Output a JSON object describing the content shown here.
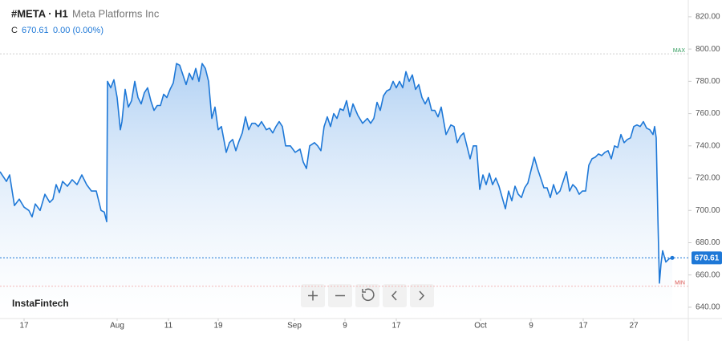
{
  "chart_data": {
    "type": "area",
    "title": "#META · H1",
    "subtitle": "Meta Platforms Inc",
    "last": {
      "label": "C",
      "value": 670.61,
      "change": "0.00 (0.00%)"
    },
    "max_line": {
      "label": "MAX",
      "value": 797
    },
    "min_line": {
      "label": "MIN",
      "value": 653
    },
    "brand": "InstaFintech",
    "color": "#1e78d7",
    "xlim": [
      0,
      858
    ],
    "ylim": [
      633,
      830.4
    ],
    "yticks": [
      {
        "value": 640,
        "label": "640.00"
      },
      {
        "value": 660,
        "label": "660.00"
      },
      {
        "value": 680,
        "label": "680.00"
      },
      {
        "value": 700,
        "label": "700.00"
      },
      {
        "value": 720,
        "label": "720.00"
      },
      {
        "value": 740,
        "label": "740.00"
      },
      {
        "value": 760,
        "label": "760.00"
      },
      {
        "value": 780,
        "label": "780.00"
      },
      {
        "value": 800,
        "label": "800.00"
      },
      {
        "value": 820,
        "label": "820.00"
      }
    ],
    "xticks": [
      {
        "value": 30,
        "label": "17"
      },
      {
        "value": 146,
        "label": "Aug"
      },
      {
        "value": 210,
        "label": "11"
      },
      {
        "value": 272,
        "label": "19"
      },
      {
        "value": 367,
        "label": "Sep"
      },
      {
        "value": 430,
        "label": "9"
      },
      {
        "value": 494,
        "label": "17"
      },
      {
        "value": 599,
        "label": "Oct"
      },
      {
        "value": 662,
        "label": "9"
      },
      {
        "value": 727,
        "label": "17"
      },
      {
        "value": 790,
        "label": "27"
      }
    ],
    "x": [
      0,
      8,
      12,
      18,
      24,
      30,
      36,
      40,
      44,
      50,
      56,
      62,
      66,
      70,
      74,
      78,
      84,
      90,
      96,
      102,
      108,
      114,
      120,
      126,
      130,
      133,
      134,
      138,
      142,
      146,
      150,
      152,
      156,
      160,
      164,
      168,
      172,
      176,
      180,
      184,
      188,
      192,
      196,
      200,
      204,
      208,
      212,
      216,
      220,
      224,
      228,
      232,
      236,
      240,
      244,
      248,
      252,
      256,
      260,
      264,
      268,
      272,
      276,
      282,
      286,
      290,
      294,
      298,
      302,
      306,
      310,
      314,
      318,
      322,
      326,
      332,
      336,
      340,
      344,
      348,
      352,
      356,
      362,
      368,
      374,
      378,
      382,
      386,
      392,
      396,
      400,
      404,
      408,
      412,
      416,
      420,
      424,
      428,
      432,
      436,
      440,
      446,
      452,
      458,
      462,
      466,
      470,
      474,
      478,
      482,
      486,
      490,
      494,
      498,
      502,
      506,
      510,
      514,
      518,
      522,
      526,
      530,
      534,
      538,
      542,
      546,
      550,
      556,
      562,
      566,
      570,
      574,
      578,
      582,
      586,
      590,
      594,
      598,
      602,
      606,
      610,
      614,
      618,
      622,
      626,
      630,
      634,
      638,
      642,
      646,
      650,
      654,
      658,
      662,
      666,
      670,
      674,
      678,
      682,
      686,
      690,
      694,
      698,
      702,
      706,
      710,
      714,
      718,
      722,
      726,
      730,
      734,
      738,
      742,
      746,
      750,
      754,
      758,
      762,
      766,
      770,
      774,
      778,
      782,
      786,
      790,
      794,
      798,
      802,
      806,
      810,
      814,
      816,
      818,
      820,
      822,
      824,
      826,
      830,
      834,
      838
    ],
    "values": [
      724,
      718,
      722,
      703,
      707,
      702,
      700,
      696,
      704,
      700,
      710,
      705,
      707,
      716,
      711,
      718,
      715,
      719,
      716,
      722,
      716,
      712,
      712,
      700,
      699,
      693,
      780,
      776,
      781,
      770,
      750,
      755,
      775,
      764,
      768,
      780,
      770,
      766,
      773,
      776,
      768,
      762,
      765,
      765,
      772,
      770,
      775,
      779,
      791,
      790,
      784,
      778,
      785,
      781,
      788,
      780,
      791,
      788,
      780,
      757,
      764,
      750,
      752,
      736,
      742,
      744,
      737,
      743,
      748,
      758,
      750,
      754,
      754,
      752,
      755,
      750,
      751,
      748,
      752,
      755,
      752,
      740,
      740,
      736,
      738,
      730,
      726,
      740,
      742,
      740,
      737,
      752,
      758,
      752,
      760,
      757,
      763,
      762,
      768,
      758,
      766,
      759,
      754,
      757,
      754,
      757,
      767,
      762,
      771,
      774,
      775,
      780,
      776,
      780,
      776,
      786,
      780,
      784,
      775,
      778,
      770,
      766,
      770,
      762,
      762,
      758,
      764,
      747,
      753,
      752,
      742,
      746,
      748,
      740,
      732,
      740,
      740,
      713,
      722,
      716,
      723,
      716,
      720,
      715,
      708,
      701,
      712,
      706,
      715,
      710,
      708,
      714,
      717,
      725,
      733,
      726,
      720,
      714,
      714,
      708,
      716,
      710,
      712,
      718,
      724,
      712,
      716,
      714,
      710,
      712,
      712,
      728,
      732,
      733,
      735,
      734,
      736,
      737,
      732,
      740,
      739,
      747,
      742,
      744,
      745,
      752,
      753,
      752,
      755,
      751,
      750,
      747,
      752,
      745,
      697,
      655,
      667,
      675,
      668,
      670,
      670.61
    ]
  }
}
